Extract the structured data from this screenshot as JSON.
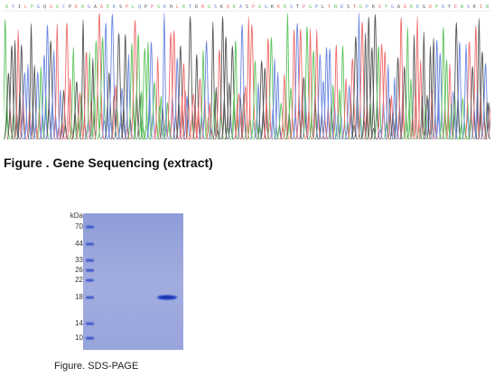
{
  "sequencing": {
    "caption": "Figure . Gene Sequencing (extract)",
    "base_colors": {
      "A": "#5cc35c",
      "C": "#6a86e0",
      "G": "#555555",
      "T": "#ef6b6b"
    },
    "header_letters": "AYILPGQGGCPKAGAAEKSPLQPPSKHLRTDBGSKQKASPGGKKRSTPGPLTNDSTGPKVTGAAKEGDPAYEWSKIN"
  },
  "sds_page": {
    "caption": "Figure. SDS-PAGE",
    "unit_label": "kDa",
    "ladder_markers": [
      "70",
      "44",
      "33",
      "26",
      "22",
      "18",
      "14",
      "10"
    ],
    "gel_color": "#9aa6dc",
    "band_color": "#2c49c8"
  }
}
